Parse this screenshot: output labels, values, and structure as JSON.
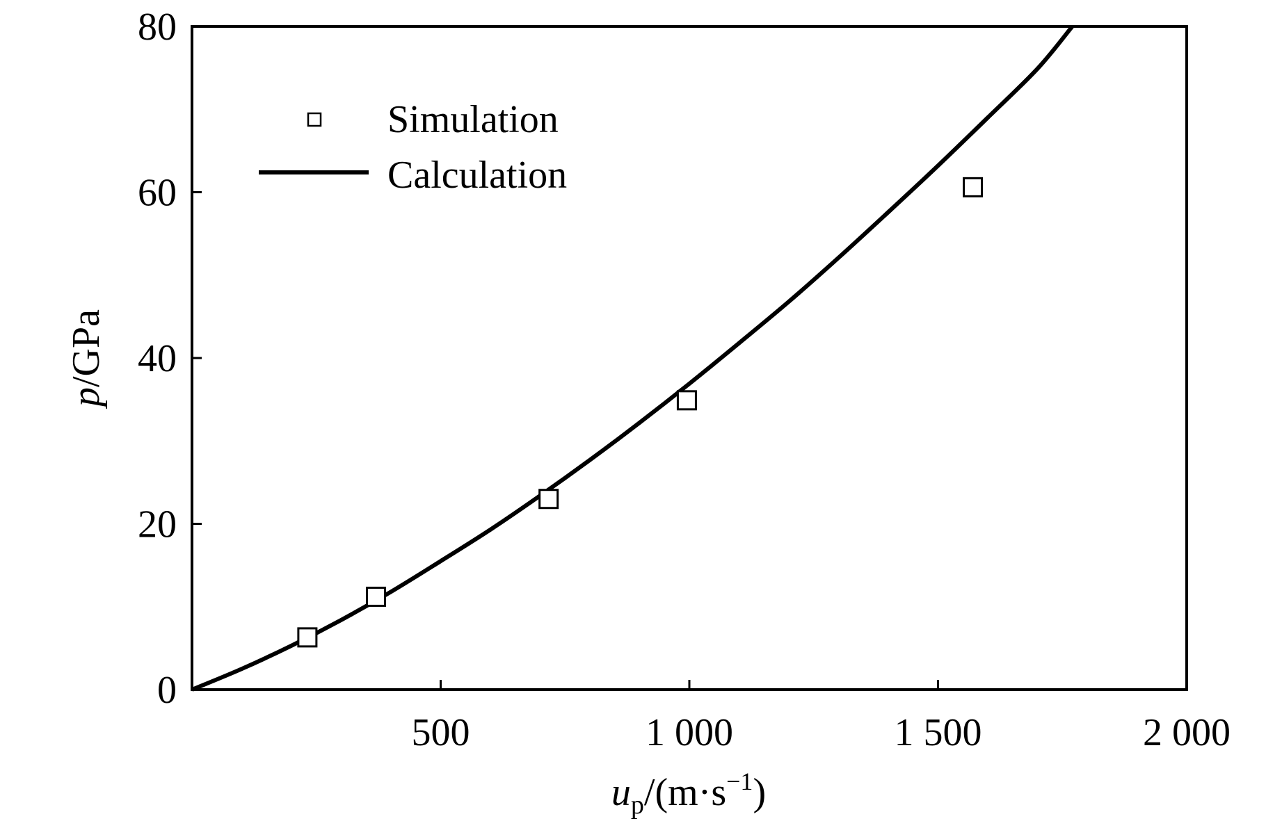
{
  "chart_data": {
    "type": "line+scatter",
    "xlabel": {
      "var": "u",
      "sub": "p",
      "unit_open": "/(m·s",
      "unit_sup": "−1",
      "unit_close": ")"
    },
    "ylabel": {
      "var": "p",
      "unit": "/GPa"
    },
    "xlim": [
      0,
      2000
    ],
    "ylim": [
      0,
      80
    ],
    "x_ticks": [
      500,
      1000,
      1500,
      2000
    ],
    "x_tick_labels": [
      "500",
      "1 000",
      "1 500",
      "2 000"
    ],
    "y_ticks": [
      0,
      20,
      40,
      60,
      80
    ],
    "y_tick_labels": [
      "0",
      "20",
      "40",
      "60",
      "80"
    ],
    "legend": {
      "position": "top-left",
      "entries": [
        {
          "name": "Simulation",
          "marker": "square"
        },
        {
          "name": "Calculation",
          "marker": "line"
        }
      ]
    },
    "series": [
      {
        "name": "Simulation",
        "kind": "scatter",
        "points": [
          {
            "x": 232,
            "y": 6.3
          },
          {
            "x": 370,
            "y": 11.2
          },
          {
            "x": 717,
            "y": 23.0
          },
          {
            "x": 995,
            "y": 34.9
          },
          {
            "x": 1570,
            "y": 60.6
          }
        ]
      },
      {
        "name": "Calculation",
        "kind": "line",
        "points": [
          {
            "x": 0,
            "y": 0
          },
          {
            "x": 100,
            "y": 2.5
          },
          {
            "x": 200,
            "y": 5.3
          },
          {
            "x": 300,
            "y": 8.4
          },
          {
            "x": 400,
            "y": 11.8
          },
          {
            "x": 500,
            "y": 15.5
          },
          {
            "x": 600,
            "y": 19.3
          },
          {
            "x": 700,
            "y": 23.4
          },
          {
            "x": 800,
            "y": 27.7
          },
          {
            "x": 900,
            "y": 32.2
          },
          {
            "x": 1000,
            "y": 36.9
          },
          {
            "x": 1100,
            "y": 41.8
          },
          {
            "x": 1200,
            "y": 46.8
          },
          {
            "x": 1300,
            "y": 52.1
          },
          {
            "x": 1400,
            "y": 57.6
          },
          {
            "x": 1500,
            "y": 63.2
          },
          {
            "x": 1600,
            "y": 69.0
          },
          {
            "x": 1700,
            "y": 74.9
          },
          {
            "x": 1770,
            "y": 80.0
          }
        ]
      }
    ]
  }
}
